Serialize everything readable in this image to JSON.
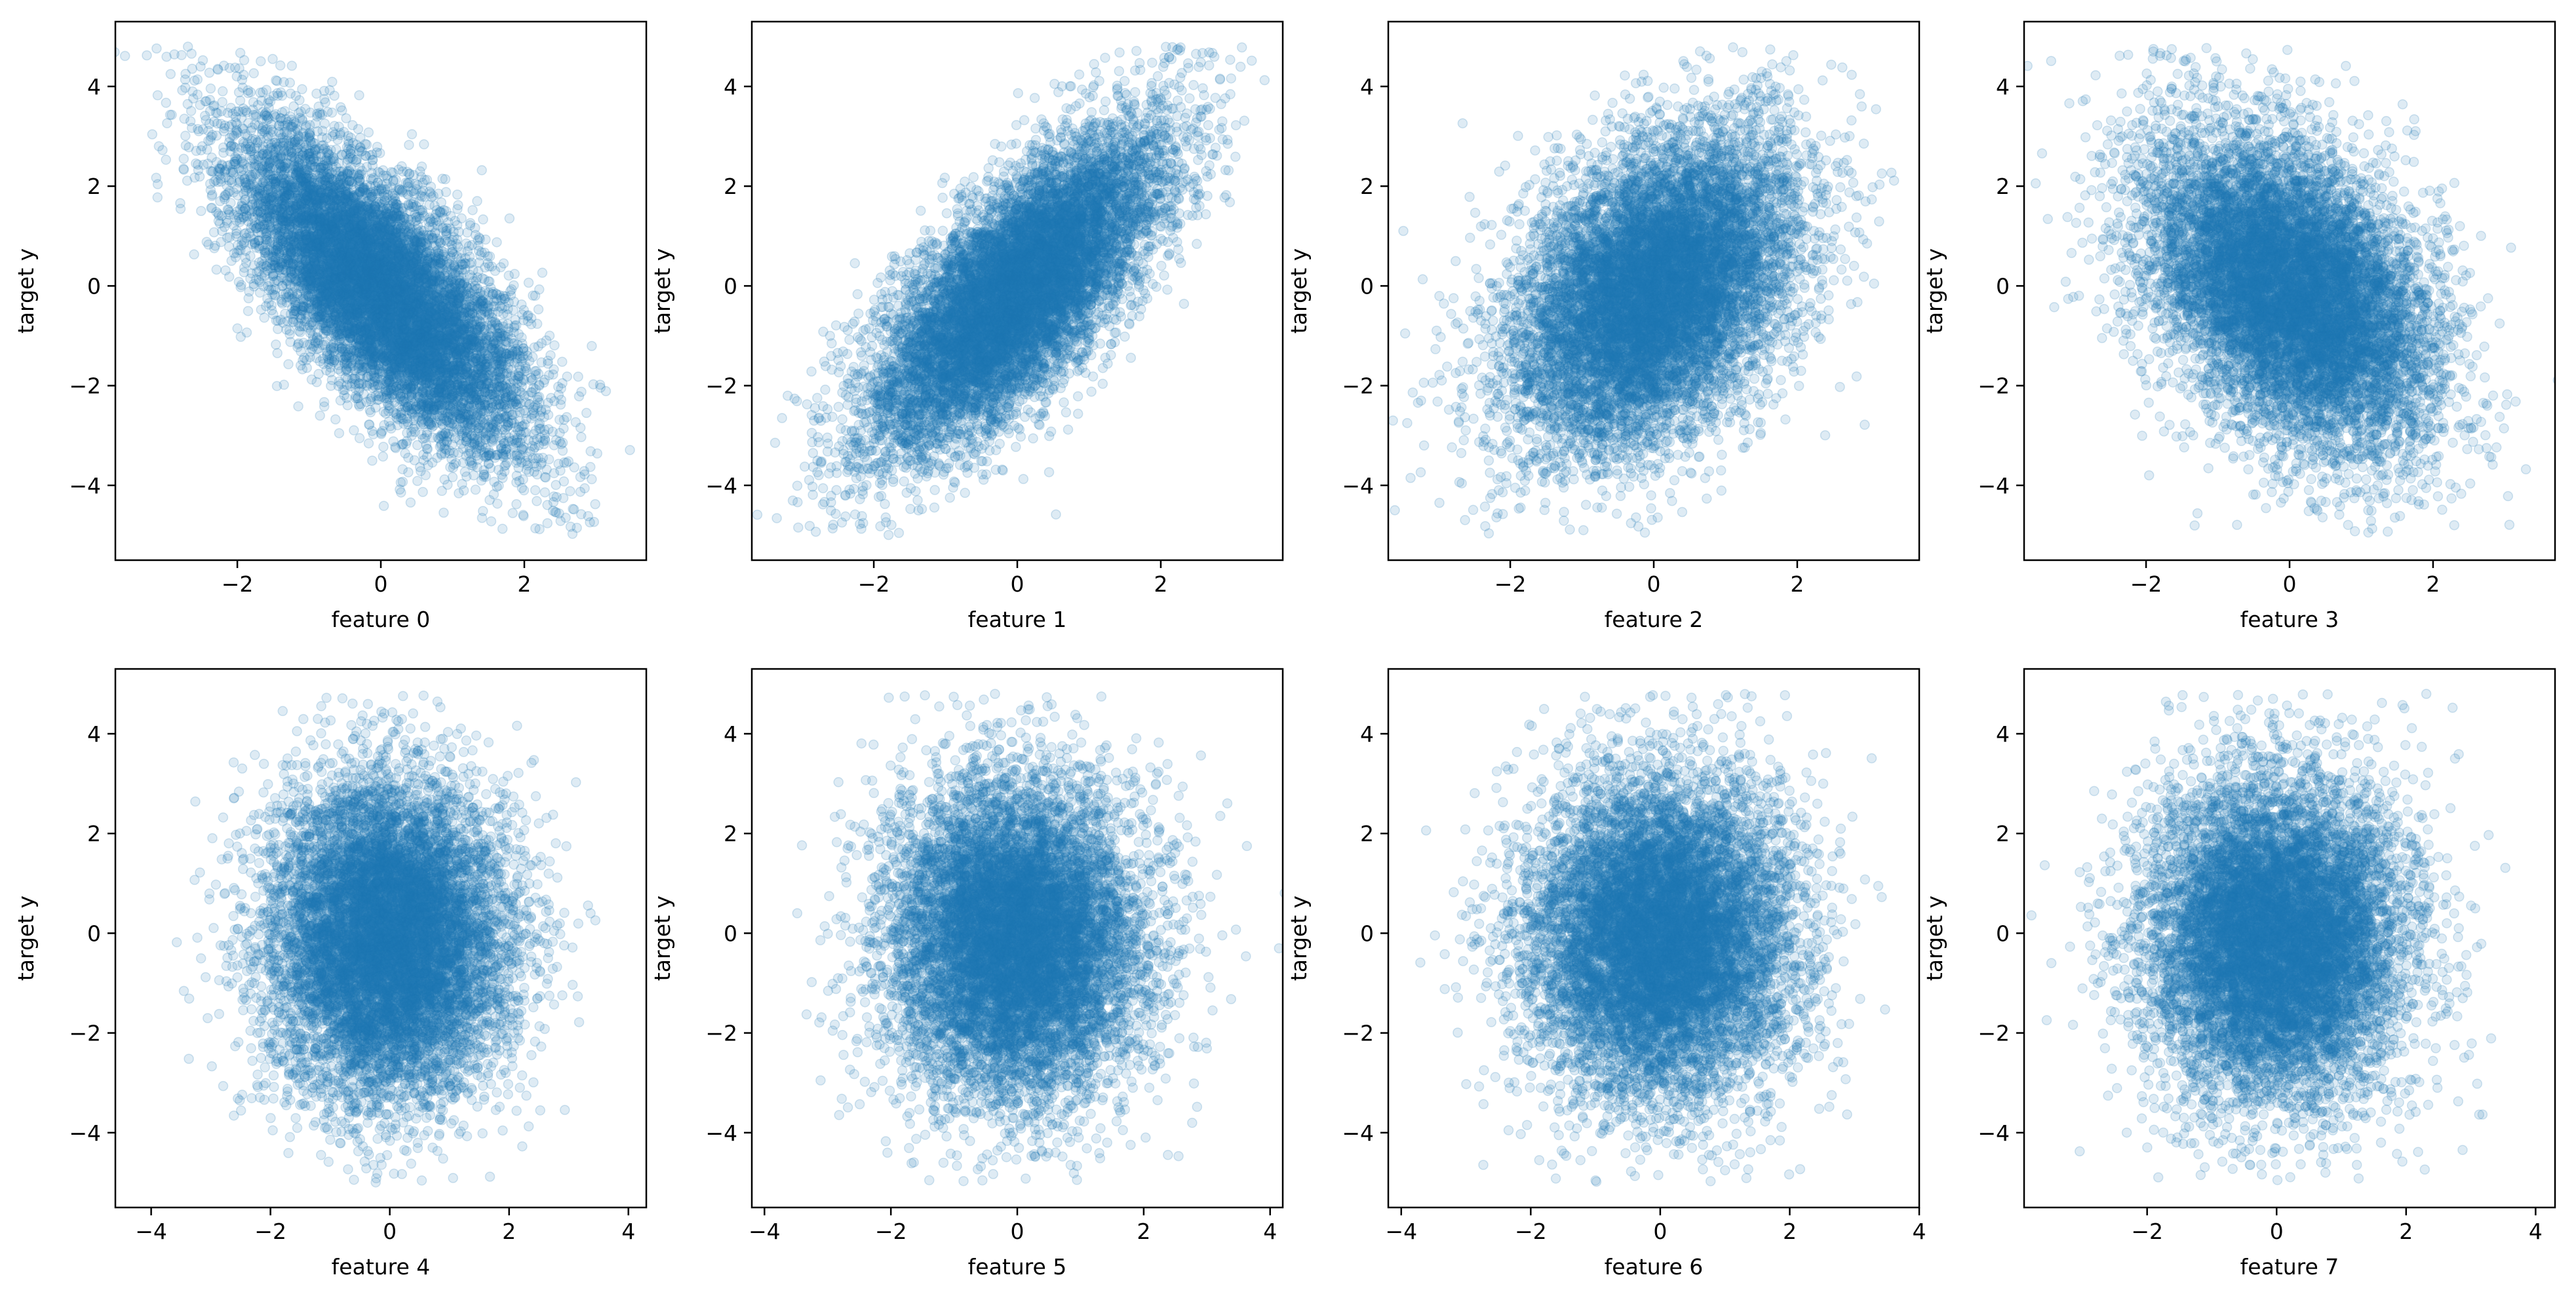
{
  "chart_data": [
    {
      "type": "scatter",
      "xlabel": "feature 0",
      "ylabel": "target y",
      "xlim": [
        -3.7,
        3.7
      ],
      "ylim": [
        -5.5,
        5.3
      ],
      "xticks": [
        -2,
        0,
        2
      ],
      "yticks": [
        -4,
        -2,
        0,
        2,
        4
      ],
      "point_color": "#1f77b4",
      "point_alpha": 0.15,
      "n_points_approx": 10000,
      "relationship": "strong negative",
      "correlation_approx": -0.72,
      "x_spread_sd": 1.0,
      "y_range": [
        -5,
        4.8
      ]
    },
    {
      "type": "scatter",
      "xlabel": "feature 1",
      "ylabel": "target y",
      "xlim": [
        -3.7,
        3.7
      ],
      "ylim": [
        -5.5,
        5.3
      ],
      "xticks": [
        -2,
        0,
        2
      ],
      "yticks": [
        -4,
        -2,
        0,
        2,
        4
      ],
      "point_color": "#1f77b4",
      "point_alpha": 0.15,
      "n_points_approx": 10000,
      "relationship": "strong positive",
      "correlation_approx": 0.72,
      "x_spread_sd": 1.0,
      "y_range": [
        -5,
        4.8
      ]
    },
    {
      "type": "scatter",
      "xlabel": "feature 2",
      "ylabel": "target y",
      "xlim": [
        -3.7,
        3.7
      ],
      "ylim": [
        -5.5,
        5.3
      ],
      "xticks": [
        -2,
        0,
        2
      ],
      "yticks": [
        -4,
        -2,
        0,
        2,
        4
      ],
      "point_color": "#1f77b4",
      "point_alpha": 0.15,
      "n_points_approx": 10000,
      "relationship": "moderate positive",
      "correlation_approx": 0.4,
      "x_spread_sd": 1.0,
      "y_range": [
        -5,
        4.8
      ]
    },
    {
      "type": "scatter",
      "xlabel": "feature 3",
      "ylabel": "target y",
      "xlim": [
        -3.7,
        3.7
      ],
      "ylim": [
        -5.5,
        5.3
      ],
      "xticks": [
        -2,
        0,
        2
      ],
      "yticks": [
        -4,
        -2,
        0,
        2,
        4
      ],
      "point_color": "#1f77b4",
      "point_alpha": 0.15,
      "n_points_approx": 10000,
      "relationship": "moderate negative",
      "correlation_approx": -0.4,
      "x_spread_sd": 1.0,
      "y_range": [
        -5,
        4.8
      ]
    },
    {
      "type": "scatter",
      "xlabel": "feature 4",
      "ylabel": "target y",
      "xlim": [
        -4.6,
        4.3
      ],
      "ylim": [
        -5.5,
        5.3
      ],
      "xticks": [
        -4,
        -2,
        0,
        2,
        4
      ],
      "yticks": [
        -4,
        -2,
        0,
        2,
        4
      ],
      "point_color": "#1f77b4",
      "point_alpha": 0.15,
      "n_points_approx": 10000,
      "relationship": "none",
      "correlation_approx": 0.0,
      "x_spread_sd": 1.0,
      "y_range": [
        -5,
        4.8
      ]
    },
    {
      "type": "scatter",
      "xlabel": "feature 5",
      "ylabel": "target y",
      "xlim": [
        -4.2,
        4.2
      ],
      "ylim": [
        -5.5,
        5.3
      ],
      "xticks": [
        -4,
        -2,
        0,
        2,
        4
      ],
      "yticks": [
        -4,
        -2,
        0,
        2,
        4
      ],
      "point_color": "#1f77b4",
      "point_alpha": 0.15,
      "n_points_approx": 10000,
      "relationship": "none",
      "correlation_approx": 0.0,
      "x_spread_sd": 1.0,
      "y_range": [
        -5,
        4.8
      ]
    },
    {
      "type": "scatter",
      "xlabel": "feature 6",
      "ylabel": "target y",
      "xlim": [
        -4.2,
        4.0
      ],
      "ylim": [
        -5.5,
        5.3
      ],
      "xticks": [
        -4,
        -2,
        0,
        2,
        4
      ],
      "yticks": [
        -4,
        -2,
        0,
        2,
        4
      ],
      "point_color": "#1f77b4",
      "point_alpha": 0.15,
      "n_points_approx": 10000,
      "relationship": "none",
      "correlation_approx": 0.0,
      "x_spread_sd": 1.0,
      "y_range": [
        -5,
        4.8
      ]
    },
    {
      "type": "scatter",
      "xlabel": "feature 7",
      "ylabel": "target y",
      "xlim": [
        -3.9,
        4.3
      ],
      "ylim": [
        -5.5,
        5.3
      ],
      "xticks": [
        -2,
        0,
        2,
        4
      ],
      "yticks": [
        -4,
        -2,
        0,
        2,
        4
      ],
      "point_color": "#1f77b4",
      "point_alpha": 0.15,
      "n_points_approx": 10000,
      "relationship": "none",
      "correlation_approx": 0.0,
      "x_spread_sd": 1.0,
      "y_range": [
        -5,
        4.8
      ]
    }
  ]
}
